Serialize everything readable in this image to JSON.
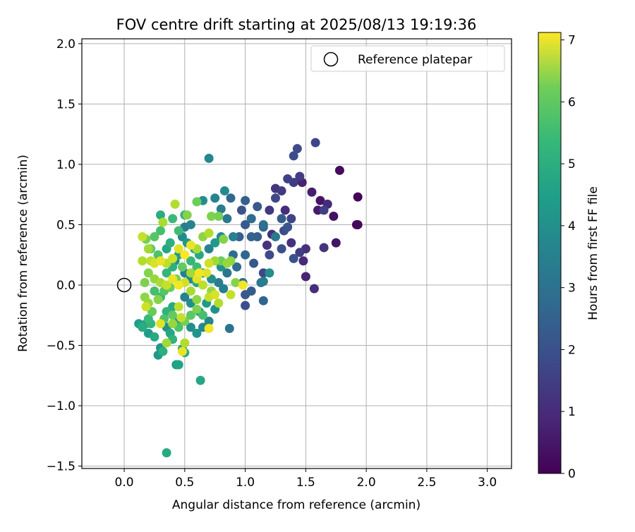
{
  "chart_data": {
    "type": "scatter",
    "title": "FOV centre drift starting at 2025/08/13 19:19:36",
    "xlabel": "Angular distance from reference (arcmin)",
    "ylabel": "Rotation from reference (arcmin)",
    "xlim": [
      -0.35,
      3.2
    ],
    "ylim": [
      -1.52,
      2.04
    ],
    "x_ticks": [
      0.0,
      0.5,
      1.0,
      1.5,
      2.0,
      2.5,
      3.0
    ],
    "x_tick_labels": [
      "0.0",
      "0.5",
      "1.0",
      "1.5",
      "2.0",
      "2.5",
      "3.0"
    ],
    "y_ticks": [
      -1.5,
      -1.0,
      -0.5,
      0.0,
      0.5,
      1.0,
      1.5,
      2.0
    ],
    "y_tick_labels": [
      "−1.5",
      "−1.0",
      "−0.5",
      "0.0",
      "0.5",
      "1.0",
      "1.5",
      "2.0"
    ],
    "grid": true,
    "legend": {
      "placement": "top-right",
      "label": "Reference platepar"
    },
    "reference_point": {
      "x": 0.0,
      "y": 0.0
    },
    "colorbar": {
      "label": "Hours from first FF file",
      "range": [
        0,
        7.12
      ],
      "ticks": [
        0,
        1,
        2,
        3,
        4,
        5,
        6,
        7
      ],
      "tick_labels": [
        "0",
        "1",
        "2",
        "3",
        "4",
        "5",
        "6",
        "7"
      ],
      "colormap": "viridis"
    },
    "points": [
      {
        "x": 1.93,
        "y": 0.73,
        "h": 0.05
      },
      {
        "x": 1.92,
        "y": 0.5,
        "h": 0.1
      },
      {
        "x": 1.93,
        "y": 0.5,
        "h": 0.15
      },
      {
        "x": 1.78,
        "y": 0.95,
        "h": 0.2
      },
      {
        "x": 1.73,
        "y": 0.57,
        "h": 0.3
      },
      {
        "x": 1.75,
        "y": 0.35,
        "h": 0.35
      },
      {
        "x": 1.62,
        "y": 0.7,
        "h": 0.4
      },
      {
        "x": 1.6,
        "y": 0.62,
        "h": 0.5
      },
      {
        "x": 1.55,
        "y": 0.77,
        "h": 0.6
      },
      {
        "x": 1.5,
        "y": 0.07,
        "h": 0.7
      },
      {
        "x": 1.48,
        "y": 0.2,
        "h": 0.8
      },
      {
        "x": 1.33,
        "y": 0.62,
        "h": 0.9
      },
      {
        "x": 1.38,
        "y": 0.35,
        "h": 1.0
      },
      {
        "x": 1.5,
        "y": 0.3,
        "h": 0.95
      },
      {
        "x": 1.68,
        "y": 0.67,
        "h": 0.85
      },
      {
        "x": 1.58,
        "y": 1.18,
        "h": 1.5
      },
      {
        "x": 1.45,
        "y": 0.9,
        "h": 1.3
      },
      {
        "x": 1.4,
        "y": 1.07,
        "h": 1.7
      },
      {
        "x": 1.43,
        "y": 1.13,
        "h": 1.6
      },
      {
        "x": 1.35,
        "y": 0.88,
        "h": 1.4
      },
      {
        "x": 1.25,
        "y": 0.8,
        "h": 1.1
      },
      {
        "x": 1.3,
        "y": 0.78,
        "h": 1.2
      },
      {
        "x": 1.38,
        "y": 0.55,
        "h": 1.45
      },
      {
        "x": 1.4,
        "y": 0.85,
        "h": 1.25
      },
      {
        "x": 1.47,
        "y": 0.85,
        "h": 0.65
      },
      {
        "x": 1.2,
        "y": 0.62,
        "h": 1.15
      },
      {
        "x": 1.25,
        "y": 0.72,
        "h": 1.55
      },
      {
        "x": 1.65,
        "y": 0.62,
        "h": 1.35
      },
      {
        "x": 1.65,
        "y": 0.31,
        "h": 1.1
      },
      {
        "x": 1.57,
        "y": -0.03,
        "h": 0.9
      },
      {
        "x": 1.35,
        "y": 0.48,
        "h": 1.9
      },
      {
        "x": 1.32,
        "y": 0.45,
        "h": 1.65
      },
      {
        "x": 1.3,
        "y": 0.3,
        "h": 1.75
      },
      {
        "x": 1.4,
        "y": 0.22,
        "h": 1.8
      },
      {
        "x": 1.45,
        "y": 0.27,
        "h": 1.3
      },
      {
        "x": 1.22,
        "y": 0.42,
        "h": 1.0
      },
      {
        "x": 1.18,
        "y": 0.33,
        "h": 1.05
      },
      {
        "x": 1.1,
        "y": 0.65,
        "h": 2.0
      },
      {
        "x": 1.05,
        "y": 0.55,
        "h": 2.3
      },
      {
        "x": 1.0,
        "y": 0.7,
        "h": 2.2
      },
      {
        "x": 0.97,
        "y": 0.62,
        "h": 1.85
      },
      {
        "x": 1.0,
        "y": 0.5,
        "h": 2.05
      },
      {
        "x": 1.1,
        "y": 0.4,
        "h": 2.15
      },
      {
        "x": 1.05,
        "y": 0.4,
        "h": 2.25
      },
      {
        "x": 1.15,
        "y": 0.48,
        "h": 2.4
      },
      {
        "x": 1.2,
        "y": 0.25,
        "h": 1.6
      },
      {
        "x": 1.15,
        "y": 0.1,
        "h": 1.55
      },
      {
        "x": 1.07,
        "y": 0.18,
        "h": 1.95
      },
      {
        "x": 1.0,
        "y": 0.25,
        "h": 2.35
      },
      {
        "x": 0.98,
        "y": 0.02,
        "h": 2.45
      },
      {
        "x": 1.0,
        "y": -0.08,
        "h": 2.0
      },
      {
        "x": 1.05,
        "y": -0.05,
        "h": 2.1
      },
      {
        "x": 1.0,
        "y": -0.17,
        "h": 1.7
      },
      {
        "x": 1.15,
        "y": -0.13,
        "h": 2.3
      },
      {
        "x": 1.13,
        "y": 0.02,
        "h": 2.8
      },
      {
        "x": 0.93,
        "y": 0.15,
        "h": 2.5
      },
      {
        "x": 0.9,
        "y": 0.25,
        "h": 2.6
      },
      {
        "x": 0.88,
        "y": 0.72,
        "h": 2.4
      },
      {
        "x": 0.83,
        "y": 0.78,
        "h": 3.4
      },
      {
        "x": 0.8,
        "y": 0.63,
        "h": 3.0
      },
      {
        "x": 0.85,
        "y": 0.55,
        "h": 2.9
      },
      {
        "x": 0.9,
        "y": 0.4,
        "h": 3.1
      },
      {
        "x": 0.95,
        "y": 0.4,
        "h": 2.2
      },
      {
        "x": 0.7,
        "y": 1.05,
        "h": 3.3
      },
      {
        "x": 0.75,
        "y": 0.72,
        "h": 3.2
      },
      {
        "x": 0.65,
        "y": 0.7,
        "h": 3.5
      },
      {
        "x": 0.87,
        "y": -0.36,
        "h": 2.7
      },
      {
        "x": 0.82,
        "y": -0.03,
        "h": 3.0
      },
      {
        "x": 0.85,
        "y": 0.1,
        "h": 2.8
      },
      {
        "x": 1.05,
        "y": 0.55,
        "h": 2.5
      },
      {
        "x": 1.2,
        "y": 0.1,
        "h": 3.5
      },
      {
        "x": 1.15,
        "y": 0.03,
        "h": 3.0
      },
      {
        "x": 1.15,
        "y": 0.5,
        "h": 2.6
      },
      {
        "x": 1.3,
        "y": 0.55,
        "h": 2.1
      },
      {
        "x": 1.25,
        "y": 0.4,
        "h": 2.9
      },
      {
        "x": 0.63,
        "y": -0.79,
        "h": 4.2
      },
      {
        "x": 0.35,
        "y": -1.39,
        "h": 4.3
      },
      {
        "x": 0.45,
        "y": -0.66,
        "h": 4.1
      },
      {
        "x": 0.43,
        "y": -0.66,
        "h": 3.9
      },
      {
        "x": 0.5,
        "y": -0.56,
        "h": 4.4
      },
      {
        "x": 0.48,
        "y": -0.53,
        "h": 4.0
      },
      {
        "x": 0.28,
        "y": -0.58,
        "h": 3.8
      },
      {
        "x": 0.32,
        "y": -0.55,
        "h": 4.5
      },
      {
        "x": 0.3,
        "y": -0.52,
        "h": 3.7
      },
      {
        "x": 0.4,
        "y": -0.45,
        "h": 4.6
      },
      {
        "x": 0.38,
        "y": -0.4,
        "h": 4.2
      },
      {
        "x": 0.25,
        "y": -0.43,
        "h": 4.3
      },
      {
        "x": 0.2,
        "y": -0.4,
        "h": 3.9
      },
      {
        "x": 0.12,
        "y": -0.32,
        "h": 4.0
      },
      {
        "x": 0.15,
        "y": -0.35,
        "h": 4.4
      },
      {
        "x": 0.18,
        "y": -0.32,
        "h": 4.1
      },
      {
        "x": 0.22,
        "y": -0.32,
        "h": 4.7
      },
      {
        "x": 0.2,
        "y": -0.28,
        "h": 4.8
      },
      {
        "x": 0.35,
        "y": -0.35,
        "h": 3.6
      },
      {
        "x": 0.45,
        "y": -0.3,
        "h": 3.8
      },
      {
        "x": 0.55,
        "y": -0.35,
        "h": 3.5
      },
      {
        "x": 0.6,
        "y": -0.4,
        "h": 3.7
      },
      {
        "x": 0.65,
        "y": -0.35,
        "h": 3.4
      },
      {
        "x": 0.7,
        "y": -0.3,
        "h": 3.3
      },
      {
        "x": 0.75,
        "y": -0.2,
        "h": 3.6
      },
      {
        "x": 0.68,
        "y": -0.15,
        "h": 3.9
      },
      {
        "x": 0.62,
        "y": -0.22,
        "h": 4.0
      },
      {
        "x": 0.55,
        "y": -0.15,
        "h": 3.5
      },
      {
        "x": 0.5,
        "y": -0.1,
        "h": 3.2
      },
      {
        "x": 0.4,
        "y": -0.18,
        "h": 4.3
      },
      {
        "x": 0.35,
        "y": -0.22,
        "h": 4.6
      },
      {
        "x": 0.3,
        "y": -0.1,
        "h": 4.8
      },
      {
        "x": 0.25,
        "y": -0.05,
        "h": 5.0
      },
      {
        "x": 0.55,
        "y": 0.5,
        "h": 3.2
      },
      {
        "x": 0.5,
        "y": 0.48,
        "h": 3.0
      },
      {
        "x": 0.48,
        "y": 0.4,
        "h": 3.4
      },
      {
        "x": 0.52,
        "y": 0.35,
        "h": 3.8
      },
      {
        "x": 0.58,
        "y": 0.3,
        "h": 4.1
      },
      {
        "x": 0.62,
        "y": 0.25,
        "h": 4.3
      },
      {
        "x": 0.45,
        "y": 0.25,
        "h": 4.0
      },
      {
        "x": 0.42,
        "y": 0.2,
        "h": 3.6
      },
      {
        "x": 0.4,
        "y": 0.15,
        "h": 4.5
      },
      {
        "x": 0.35,
        "y": 0.1,
        "h": 4.7
      },
      {
        "x": 0.5,
        "y": 0.1,
        "h": 3.1
      },
      {
        "x": 0.55,
        "y": 0.05,
        "h": 3.3
      },
      {
        "x": 0.6,
        "y": 0.02,
        "h": 4.2
      },
      {
        "x": 0.65,
        "y": 0.1,
        "h": 3.7
      },
      {
        "x": 0.72,
        "y": 0.05,
        "h": 3.5
      },
      {
        "x": 0.78,
        "y": 0.02,
        "h": 3.0
      },
      {
        "x": 0.8,
        "y": 0.15,
        "h": 3.6
      },
      {
        "x": 0.7,
        "y": 0.3,
        "h": 3.2
      },
      {
        "x": 0.75,
        "y": 0.35,
        "h": 3.9
      },
      {
        "x": 0.8,
        "y": 0.4,
        "h": 3.4
      },
      {
        "x": 0.3,
        "y": 0.58,
        "h": 4.4
      },
      {
        "x": 0.5,
        "y": 0.58,
        "h": 4.6
      },
      {
        "x": 0.4,
        "y": 0.55,
        "h": 4.8
      },
      {
        "x": 0.45,
        "y": 0.45,
        "h": 4.9
      },
      {
        "x": 0.3,
        "y": 0.45,
        "h": 5.0
      },
      {
        "x": 0.25,
        "y": 0.4,
        "h": 5.2
      },
      {
        "x": 0.22,
        "y": 0.3,
        "h": 5.3
      },
      {
        "x": 0.28,
        "y": 0.25,
        "h": 5.1
      },
      {
        "x": 0.35,
        "y": 0.3,
        "h": 4.2
      },
      {
        "x": 0.38,
        "y": 0.35,
        "h": 4.5
      },
      {
        "x": 0.55,
        "y": 0.2,
        "h": 4.7
      },
      {
        "x": 0.6,
        "y": 0.15,
        "h": 4.9
      },
      {
        "x": 0.48,
        "y": 0.15,
        "h": 5.4
      },
      {
        "x": 0.43,
        "y": 0.05,
        "h": 5.6
      },
      {
        "x": 0.38,
        "y": -0.02,
        "h": 5.5
      },
      {
        "x": 0.33,
        "y": -0.05,
        "h": 5.2
      },
      {
        "x": 0.28,
        "y": -0.12,
        "h": 5.8
      },
      {
        "x": 0.2,
        "y": -0.15,
        "h": 6.0
      },
      {
        "x": 0.17,
        "y": -0.1,
        "h": 5.9
      },
      {
        "x": 0.4,
        "y": -0.25,
        "h": 5.4
      },
      {
        "x": 0.45,
        "y": -0.35,
        "h": 5.1
      },
      {
        "x": 0.5,
        "y": -0.3,
        "h": 5.6
      },
      {
        "x": 0.55,
        "y": -0.25,
        "h": 5.3
      },
      {
        "x": 0.6,
        "y": -0.2,
        "h": 5.7
      },
      {
        "x": 0.65,
        "y": -0.25,
        "h": 5.0
      },
      {
        "x": 0.35,
        "y": -0.48,
        "h": 6.1
      },
      {
        "x": 0.5,
        "y": -0.48,
        "h": 6.3
      },
      {
        "x": 0.3,
        "y": -0.32,
        "h": 6.8
      },
      {
        "x": 0.48,
        "y": -0.55,
        "h": 6.9
      },
      {
        "x": 0.7,
        "y": -0.36,
        "h": 7.0
      },
      {
        "x": 0.45,
        "y": -0.18,
        "h": 6.4
      },
      {
        "x": 0.55,
        "y": -0.05,
        "h": 6.2
      },
      {
        "x": 0.6,
        "y": -0.12,
        "h": 5.9
      },
      {
        "x": 0.7,
        "y": -0.1,
        "h": 6.5
      },
      {
        "x": 0.75,
        "y": -0.08,
        "h": 6.7
      },
      {
        "x": 0.78,
        "y": -0.15,
        "h": 6.3
      },
      {
        "x": 0.72,
        "y": -0.05,
        "h": 6.0
      },
      {
        "x": 0.88,
        "y": -0.08,
        "h": 6.5
      },
      {
        "x": 0.98,
        "y": 0.0,
        "h": 7.0
      },
      {
        "x": 0.92,
        "y": 0.02,
        "h": 5.8
      },
      {
        "x": 0.65,
        "y": 0.0,
        "h": 6.4
      },
      {
        "x": 0.6,
        "y": 0.05,
        "h": 6.8
      },
      {
        "x": 0.55,
        "y": 0.1,
        "h": 6.1
      },
      {
        "x": 0.5,
        "y": 0.02,
        "h": 6.6
      },
      {
        "x": 0.45,
        "y": 0.0,
        "h": 7.0
      },
      {
        "x": 0.4,
        "y": 0.05,
        "h": 6.9
      },
      {
        "x": 0.35,
        "y": 0.0,
        "h": 6.5
      },
      {
        "x": 0.3,
        "y": 0.02,
        "h": 6.2
      },
      {
        "x": 0.25,
        "y": 0.05,
        "h": 6.0
      },
      {
        "x": 0.2,
        "y": 0.1,
        "h": 5.8
      },
      {
        "x": 0.15,
        "y": 0.2,
        "h": 6.3
      },
      {
        "x": 0.15,
        "y": 0.4,
        "h": 6.5
      },
      {
        "x": 0.2,
        "y": 0.3,
        "h": 6.1
      },
      {
        "x": 0.25,
        "y": 0.18,
        "h": 6.7
      },
      {
        "x": 0.3,
        "y": 0.2,
        "h": 6.9
      },
      {
        "x": 0.35,
        "y": 0.18,
        "h": 6.4
      },
      {
        "x": 0.4,
        "y": 0.22,
        "h": 6.6
      },
      {
        "x": 0.45,
        "y": 0.3,
        "h": 6.8
      },
      {
        "x": 0.5,
        "y": 0.25,
        "h": 7.1
      },
      {
        "x": 0.55,
        "y": 0.33,
        "h": 6.9
      },
      {
        "x": 0.6,
        "y": 0.3,
        "h": 6.2
      },
      {
        "x": 0.65,
        "y": 0.4,
        "h": 5.9
      },
      {
        "x": 0.7,
        "y": 0.43,
        "h": 6.3
      },
      {
        "x": 0.72,
        "y": 0.57,
        "h": 5.7
      },
      {
        "x": 0.78,
        "y": 0.57,
        "h": 5.6
      },
      {
        "x": 0.82,
        "y": 0.38,
        "h": 5.8
      },
      {
        "x": 0.85,
        "y": 0.18,
        "h": 6.0
      },
      {
        "x": 0.8,
        "y": 0.2,
        "h": 5.5
      },
      {
        "x": 0.88,
        "y": 0.2,
        "h": 5.9
      },
      {
        "x": 0.75,
        "y": 0.2,
        "h": 6.1
      },
      {
        "x": 0.7,
        "y": 0.18,
        "h": 6.6
      },
      {
        "x": 0.68,
        "y": 0.1,
        "h": 6.8
      },
      {
        "x": 0.62,
        "y": 0.1,
        "h": 7.0
      },
      {
        "x": 0.42,
        "y": 0.67,
        "h": 6.3
      },
      {
        "x": 0.52,
        "y": 0.58,
        "h": 5.8
      },
      {
        "x": 0.6,
        "y": 0.69,
        "h": 5.5
      },
      {
        "x": 0.32,
        "y": 0.52,
        "h": 6.2
      },
      {
        "x": 0.18,
        "y": 0.38,
        "h": 5.6
      },
      {
        "x": 0.22,
        "y": 0.2,
        "h": 6.4
      },
      {
        "x": 0.17,
        "y": 0.02,
        "h": 5.7
      },
      {
        "x": 0.18,
        "y": -0.18,
        "h": 6.6
      },
      {
        "x": 0.23,
        "y": -0.22,
        "h": 5.4
      },
      {
        "x": 0.33,
        "y": -0.28,
        "h": 5.1
      },
      {
        "x": 0.4,
        "y": -0.32,
        "h": 6.0
      },
      {
        "x": 0.47,
        "y": -0.27,
        "h": 6.5
      }
    ]
  }
}
